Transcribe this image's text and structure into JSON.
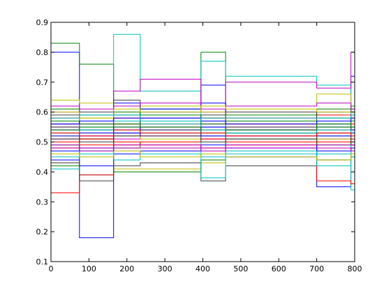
{
  "chart_data": {
    "type": "line",
    "step": true,
    "title": "",
    "xlabel": "",
    "ylabel": "",
    "xlim": [
      0,
      800
    ],
    "ylim": [
      0.1,
      0.9
    ],
    "xticks": [
      0,
      100,
      200,
      300,
      400,
      500,
      600,
      700,
      800
    ],
    "yticks": [
      0.1,
      0.2,
      0.3,
      0.4,
      0.5,
      0.6,
      0.7,
      0.8,
      0.9
    ],
    "xtick_labels": [
      "0",
      "100",
      "200",
      "300",
      "400",
      "500",
      "600",
      "700",
      "800"
    ],
    "ytick_labels": [
      "0.1",
      "0.2",
      "0.3",
      "0.4",
      "0.5",
      "0.6",
      "0.7",
      "0.8",
      "0.9"
    ],
    "grid": false,
    "legend": "none",
    "breakpoints": [
      0,
      75,
      165,
      235,
      395,
      460,
      700,
      790,
      800
    ],
    "colors": [
      "#0000ff",
      "#008000",
      "#ff0000",
      "#00bfbf",
      "#bf00bf",
      "#bfbf00",
      "#404040"
    ],
    "series": [
      {
        "color": "#0000ff",
        "values": [
          0.8,
          0.18,
          0.63,
          0.6,
          0.69,
          0.52,
          0.35,
          0.72
        ]
      },
      {
        "color": "#008000",
        "values": [
          0.83,
          0.76,
          0.62,
          0.61,
          0.8,
          0.53,
          0.44,
          0.45
        ]
      },
      {
        "color": "#00bfbf",
        "values": [
          0.41,
          0.39,
          0.86,
          0.67,
          0.77,
          0.72,
          0.69,
          0.34
        ]
      },
      {
        "color": "#bf00bf",
        "values": [
          0.6,
          0.54,
          0.67,
          0.71,
          0.6,
          0.7,
          0.68,
          0.8
        ]
      },
      {
        "color": "#ff0000",
        "values": [
          0.33,
          0.39,
          0.53,
          0.52,
          0.55,
          0.54,
          0.37,
          0.36
        ]
      },
      {
        "color": "#bfbf00",
        "values": [
          0.64,
          0.63,
          0.41,
          0.41,
          0.43,
          0.62,
          0.66,
          0.6
        ]
      },
      {
        "color": "#404040",
        "values": [
          0.43,
          0.37,
          0.42,
          0.43,
          0.37,
          0.42,
          0.6,
          0.61
        ]
      },
      {
        "color": "#0000ff",
        "values": [
          0.44,
          0.42,
          0.52,
          0.61,
          0.63,
          0.45,
          0.5,
          0.49
        ]
      },
      {
        "color": "#008000",
        "values": [
          0.42,
          0.51,
          0.4,
          0.4,
          0.44,
          0.53,
          0.52,
          0.51
        ]
      },
      {
        "color": "#ff0000",
        "values": [
          0.58,
          0.57,
          0.58,
          0.56,
          0.57,
          0.58,
          0.59,
          0.58
        ]
      },
      {
        "color": "#00bfbf",
        "values": [
          0.5,
          0.46,
          0.56,
          0.62,
          0.38,
          0.46,
          0.42,
          0.48
        ]
      },
      {
        "color": "#bf00bf",
        "values": [
          0.55,
          0.56,
          0.54,
          0.55,
          0.56,
          0.55,
          0.56,
          0.55
        ]
      },
      {
        "color": "#bfbf00",
        "values": [
          0.57,
          0.58,
          0.57,
          0.62,
          0.6,
          0.56,
          0.57,
          0.56
        ]
      },
      {
        "color": "#404040",
        "values": [
          0.53,
          0.51,
          0.64,
          0.55,
          0.52,
          0.53,
          0.53,
          0.54
        ]
      },
      {
        "color": "#0000ff",
        "values": [
          0.47,
          0.48,
          0.46,
          0.47,
          0.49,
          0.48,
          0.47,
          0.48
        ]
      },
      {
        "color": "#008000",
        "values": [
          0.61,
          0.59,
          0.6,
          0.59,
          0.58,
          0.59,
          0.61,
          0.62
        ]
      },
      {
        "color": "#ff0000",
        "values": [
          0.48,
          0.49,
          0.5,
          0.49,
          0.48,
          0.49,
          0.5,
          0.49
        ]
      },
      {
        "color": "#00bfbf",
        "values": [
          0.56,
          0.55,
          0.57,
          0.56,
          0.55,
          0.57,
          0.56,
          0.57
        ]
      },
      {
        "color": "#bf00bf",
        "values": [
          0.51,
          0.52,
          0.51,
          0.52,
          0.51,
          0.5,
          0.51,
          0.52
        ]
      },
      {
        "color": "#bfbf00",
        "values": [
          0.52,
          0.53,
          0.52,
          0.51,
          0.53,
          0.52,
          0.51,
          0.53
        ]
      },
      {
        "color": "#404040",
        "values": [
          0.59,
          0.6,
          0.59,
          0.58,
          0.59,
          0.6,
          0.58,
          0.59
        ]
      },
      {
        "color": "#0000ff",
        "values": [
          0.54,
          0.53,
          0.55,
          0.54,
          0.55,
          0.54,
          0.55,
          0.54
        ]
      },
      {
        "color": "#008000",
        "values": [
          0.49,
          0.5,
          0.48,
          0.5,
          0.5,
          0.51,
          0.49,
          0.5
        ]
      },
      {
        "color": "#ff0000",
        "values": [
          0.56,
          0.57,
          0.56,
          0.57,
          0.58,
          0.56,
          0.57,
          0.56
        ]
      },
      {
        "color": "#00bfbf",
        "values": [
          0.45,
          0.47,
          0.44,
          0.46,
          0.45,
          0.47,
          0.46,
          0.45
        ]
      },
      {
        "color": "#bf00bf",
        "values": [
          0.62,
          0.61,
          0.62,
          0.63,
          0.61,
          0.62,
          0.63,
          0.61
        ]
      },
      {
        "color": "#bfbf00",
        "values": [
          0.46,
          0.45,
          0.47,
          0.45,
          0.46,
          0.45,
          0.44,
          0.46
        ]
      },
      {
        "color": "#404040",
        "values": [
          0.55,
          0.54,
          0.53,
          0.54,
          0.54,
          0.55,
          0.54,
          0.55
        ]
      },
      {
        "color": "#0000ff",
        "values": [
          0.52,
          0.52,
          0.53,
          0.53,
          0.52,
          0.52,
          0.52,
          0.53
        ]
      },
      {
        "color": "#008000",
        "values": [
          0.57,
          0.56,
          0.55,
          0.57,
          0.56,
          0.57,
          0.55,
          0.57
        ]
      },
      {
        "color": "#ff0000",
        "values": [
          0.5,
          0.51,
          0.49,
          0.5,
          0.51,
          0.5,
          0.5,
          0.51
        ]
      },
      {
        "color": "#00bfbf",
        "values": [
          0.53,
          0.54,
          0.54,
          0.53,
          0.54,
          0.53,
          0.54,
          0.52
        ]
      },
      {
        "color": "#bf00bf",
        "values": [
          0.48,
          0.47,
          0.48,
          0.48,
          0.47,
          0.48,
          0.48,
          0.47
        ]
      },
      {
        "color": "#bfbf00",
        "values": [
          0.6,
          0.58,
          0.61,
          0.6,
          0.62,
          0.61,
          0.6,
          0.6
        ]
      },
      {
        "color": "#404040",
        "values": [
          0.51,
          0.5,
          0.52,
          0.52,
          0.5,
          0.51,
          0.53,
          0.5
        ]
      },
      {
        "color": "#0000ff",
        "values": [
          0.56,
          0.57,
          0.58,
          0.58,
          0.57,
          0.56,
          0.57,
          0.58
        ]
      },
      {
        "color": "#008000",
        "values": [
          0.54,
          0.55,
          0.56,
          0.55,
          0.53,
          0.54,
          0.56,
          0.55
        ]
      },
      {
        "color": "#ff0000",
        "values": [
          0.53,
          0.52,
          0.54,
          0.53,
          0.53,
          0.52,
          0.53,
          0.52
        ]
      },
      {
        "color": "#00bfbf",
        "values": [
          0.58,
          0.59,
          0.59,
          0.57,
          0.58,
          0.58,
          0.58,
          0.59
        ]
      },
      {
        "color": "#bf00bf",
        "values": [
          0.49,
          0.48,
          0.49,
          0.49,
          0.48,
          0.49,
          0.49,
          0.49
        ]
      }
    ]
  }
}
